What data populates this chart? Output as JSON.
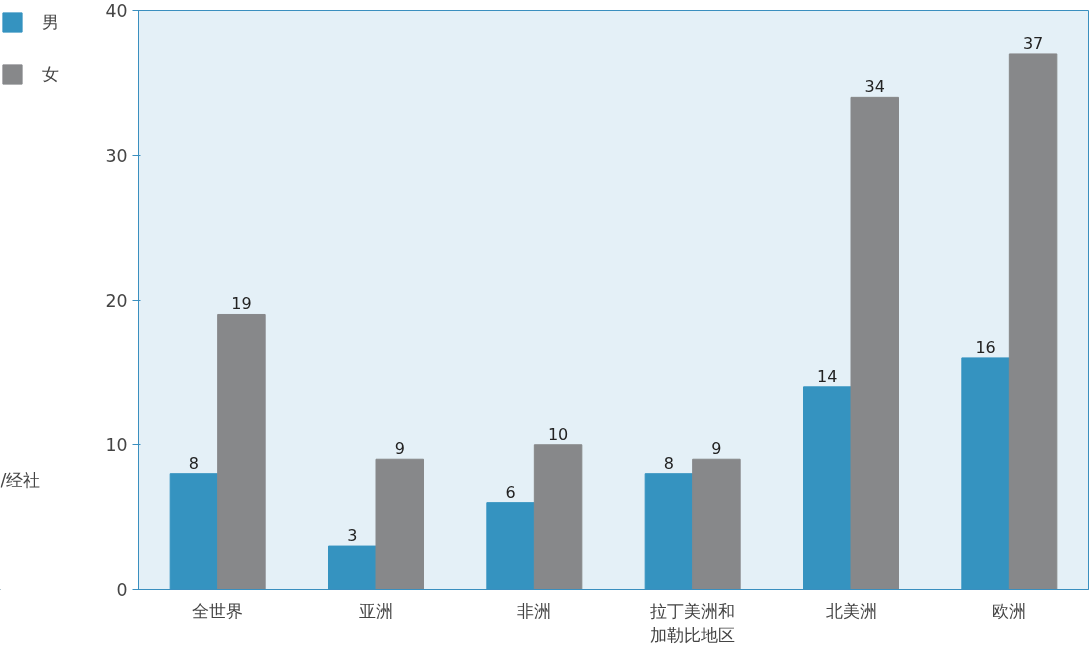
{
  "chart_data": {
    "type": "bar",
    "categories": [
      "全世界",
      "亚洲",
      "非洲",
      "拉丁美洲和加勒比地区",
      "北美洲",
      "欧洲"
    ],
    "series": [
      {
        "name": "男",
        "color": "#3593c0",
        "values": [
          8,
          3,
          6,
          8,
          14,
          16
        ]
      },
      {
        "name": "女",
        "color": "#87888a",
        "values": [
          19,
          9,
          10,
          9,
          34,
          37
        ]
      }
    ],
    "ylim": [
      0,
      40
    ],
    "yticks": [
      0,
      10,
      20,
      30,
      40
    ],
    "grid": false,
    "legend": "top left",
    "data_labels": true,
    "annotations": [
      "/经社"
    ]
  }
}
